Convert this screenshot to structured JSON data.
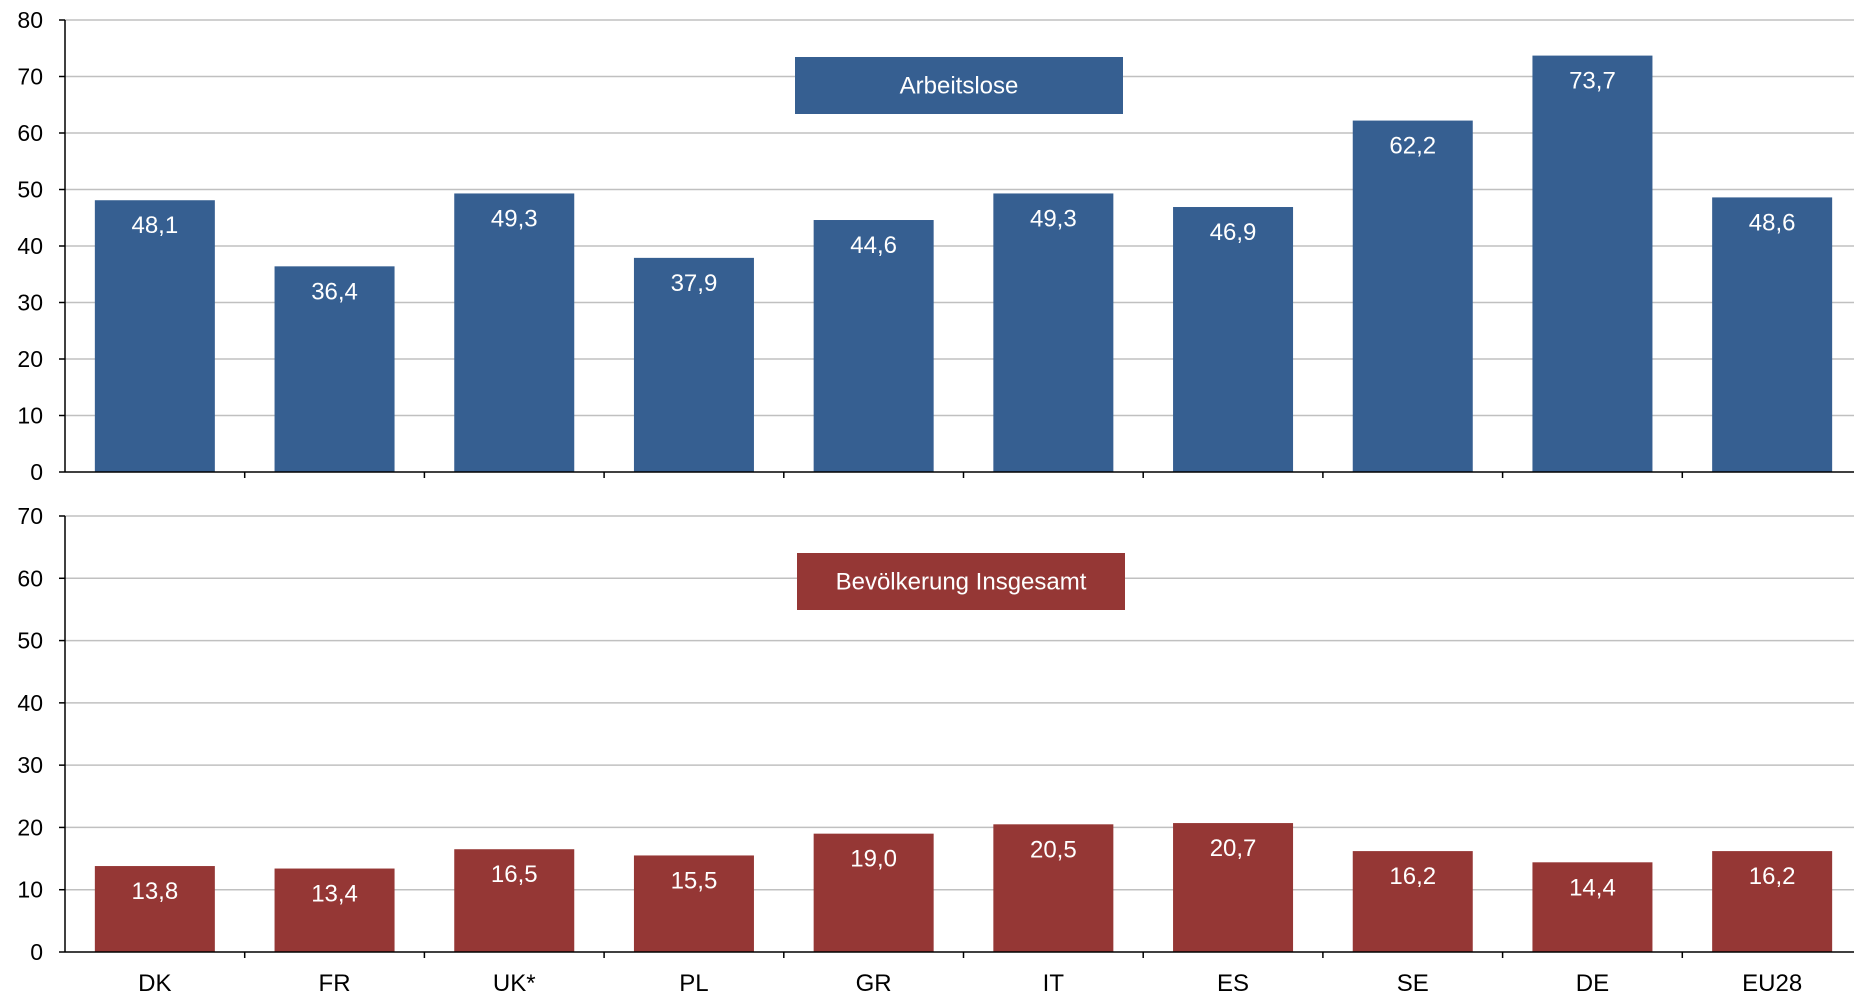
{
  "chart_data": [
    {
      "type": "bar",
      "title": "Arbeitslose",
      "categories": [
        "DK",
        "FR",
        "UK*",
        "PL",
        "GR",
        "IT",
        "ES",
        "SE",
        "DE",
        "EU28"
      ],
      "values": [
        48.1,
        36.4,
        49.3,
        37.9,
        44.6,
        49.3,
        46.9,
        62.2,
        73.7,
        48.6
      ],
      "value_labels": [
        "48,1",
        "36,4",
        "49,3",
        "37,9",
        "44,6",
        "49,3",
        "46,9",
        "62,2",
        "73,7",
        "48,6"
      ],
      "ylim": [
        0,
        80
      ],
      "yticks": [
        0,
        10,
        20,
        30,
        40,
        50,
        60,
        70,
        80
      ],
      "color": "#365f91",
      "grid": true
    },
    {
      "type": "bar",
      "title": "Bevölkerung Insgesamt",
      "categories": [
        "DK",
        "FR",
        "UK*",
        "PL",
        "GR",
        "IT",
        "ES",
        "SE",
        "DE",
        "EU28"
      ],
      "values": [
        13.8,
        13.4,
        16.5,
        15.5,
        19.0,
        20.5,
        20.7,
        16.2,
        14.4,
        16.2
      ],
      "value_labels": [
        "13,8",
        "13,4",
        "16,5",
        "15,5",
        "19,0",
        "20,5",
        "20,7",
        "16,2",
        "14,4",
        "16,2"
      ],
      "ylim": [
        0,
        70
      ],
      "yticks": [
        0,
        10,
        20,
        30,
        40,
        50,
        60,
        70
      ],
      "color": "#953735",
      "grid": true
    }
  ]
}
